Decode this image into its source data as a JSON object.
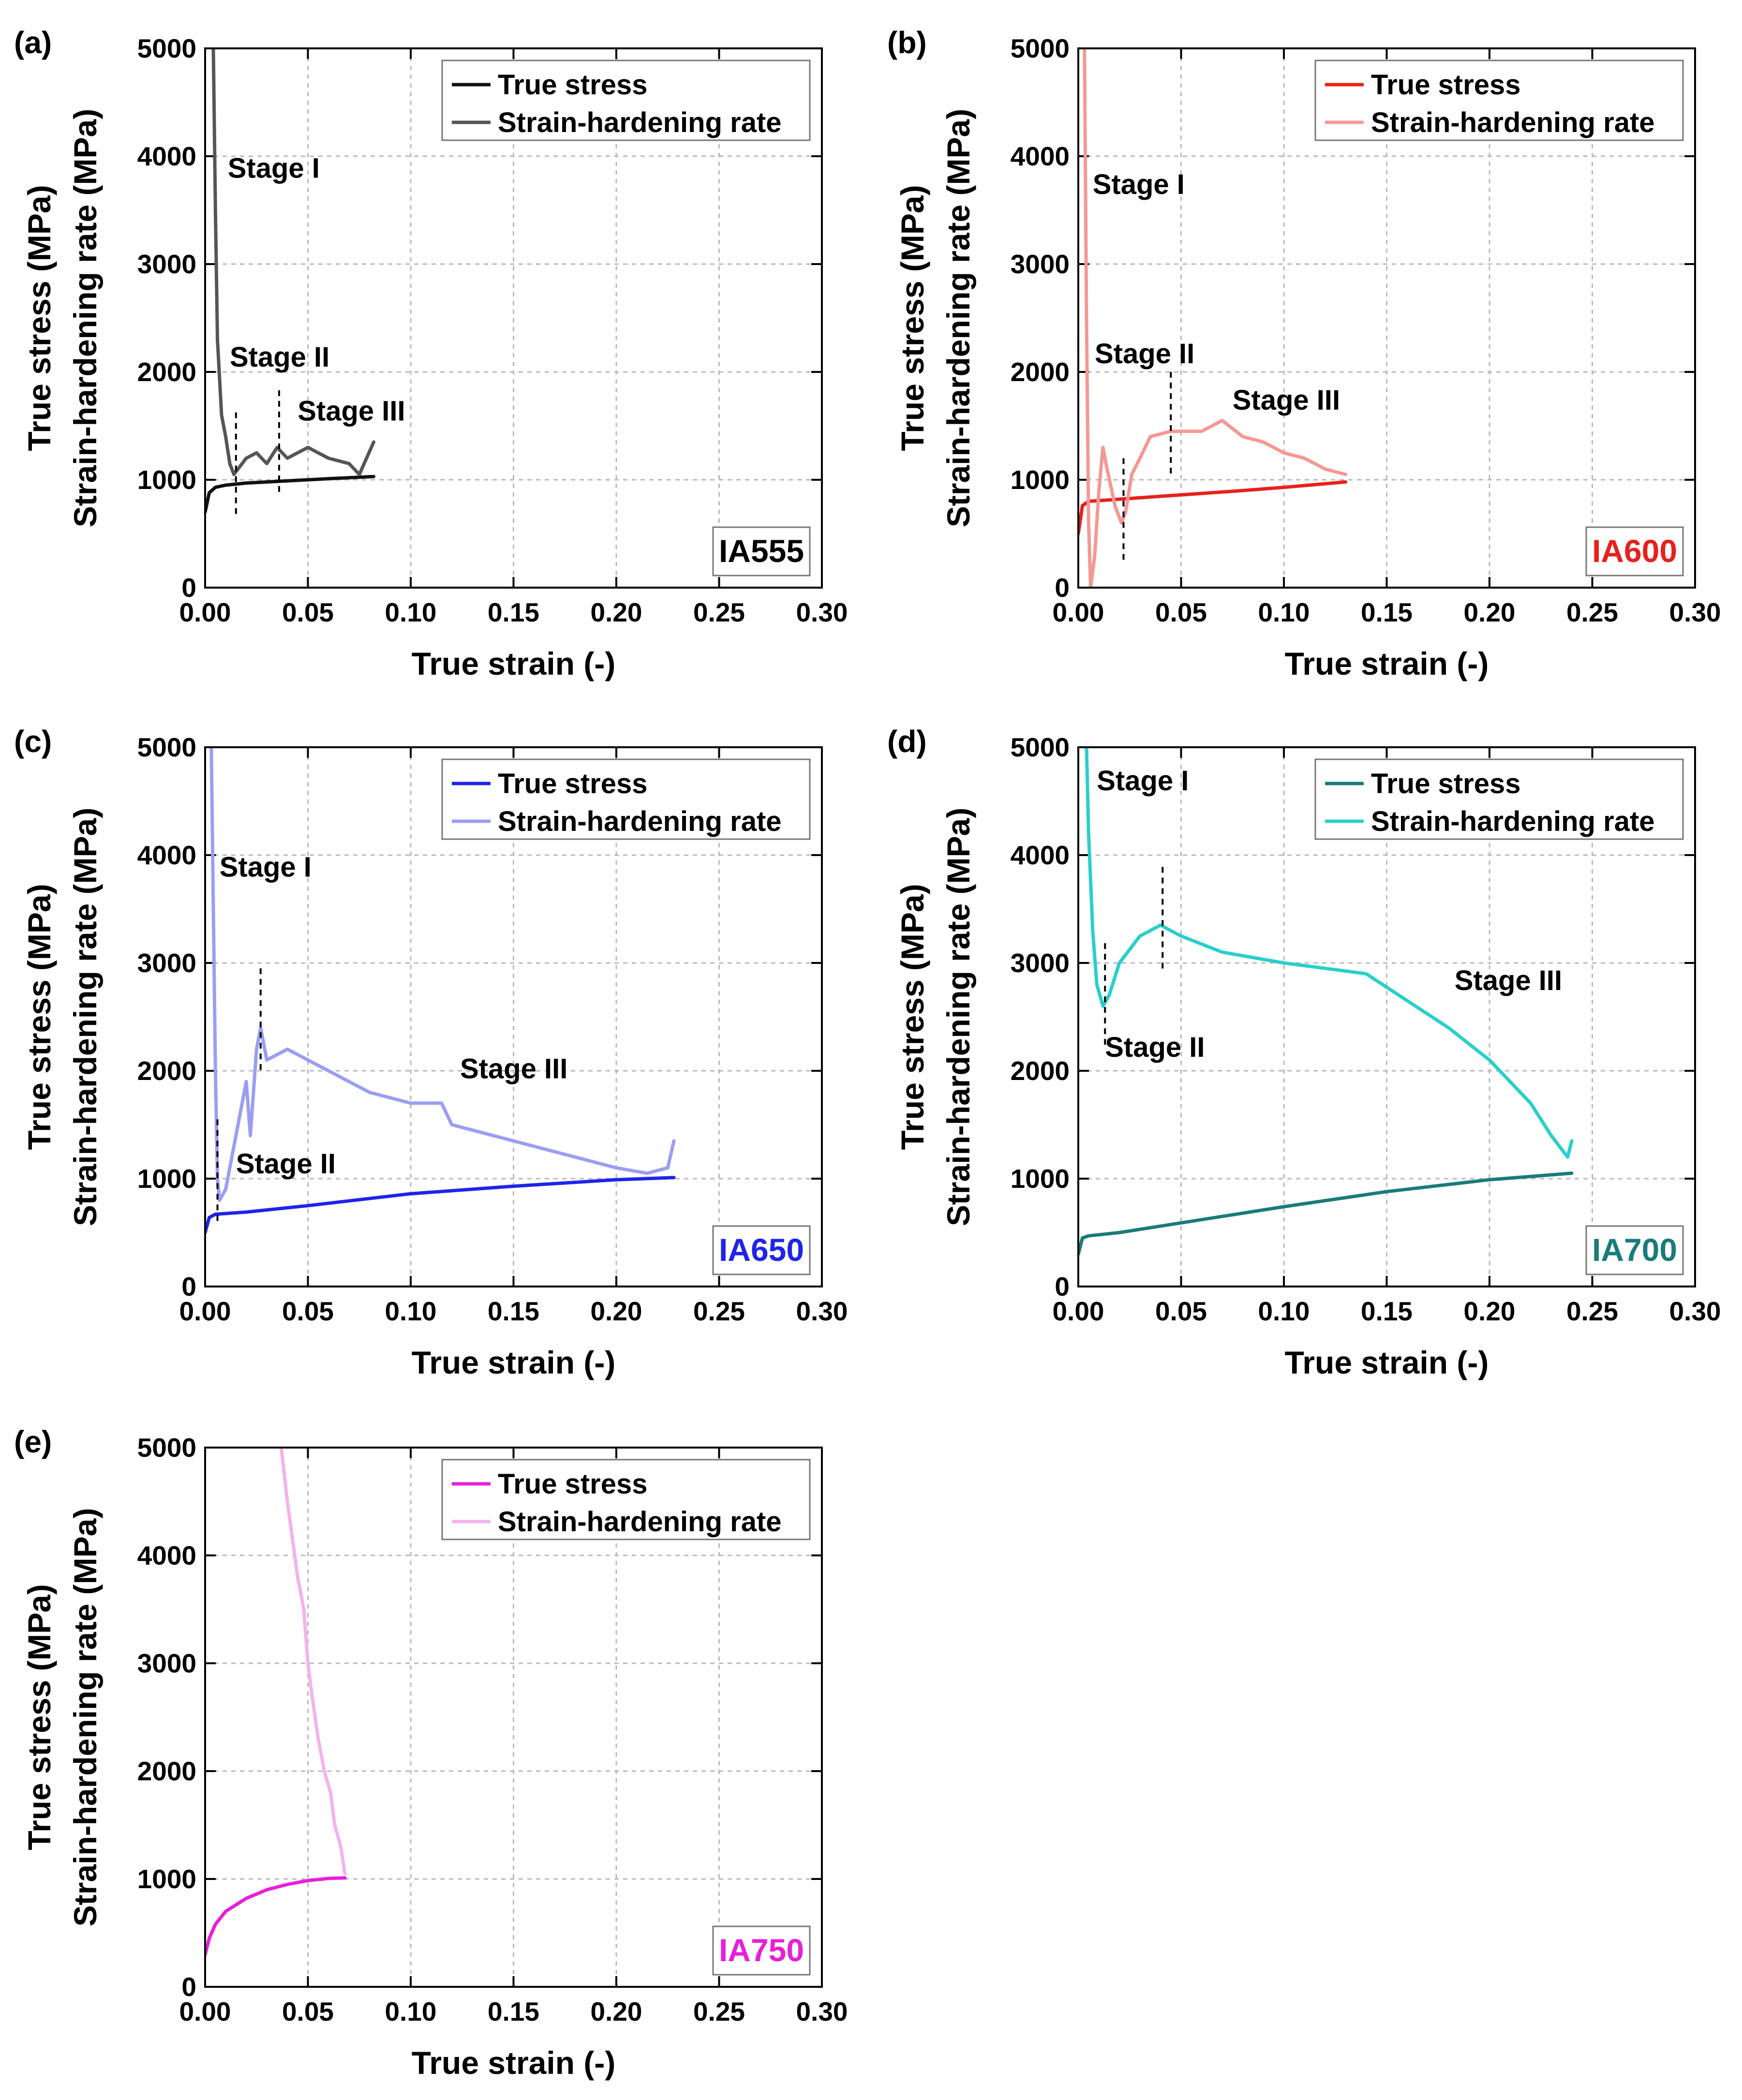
{
  "figure": {
    "common": {
      "xlabel": "True strain (-)",
      "ylabel_line1": "True stress (MPa)",
      "ylabel_line2": "Strain-hardening rate (MPa)",
      "xlim": [
        0,
        0.3
      ],
      "ylim": [
        0,
        5000
      ],
      "xticks": [
        "0.00",
        "0.05",
        "0.10",
        "0.15",
        "0.20",
        "0.25",
        "0.30"
      ],
      "yticks": [
        "0",
        "1000",
        "2000",
        "3000",
        "4000",
        "5000"
      ],
      "legend": [
        "True stress",
        "Strain-hardening rate"
      ]
    }
  },
  "chart_data": [
    {
      "type": "line",
      "panel": "(a)",
      "sample": "IA555",
      "title": "IA555",
      "xlabel": "True strain (-)",
      "ylabel": "True stress (MPa) / Strain-hardening rate (MPa)",
      "xlim": [
        0,
        0.3
      ],
      "ylim": [
        0,
        5000
      ],
      "grid": true,
      "legend_position": "top-right",
      "colors": {
        "stress": "#111111",
        "rate": "#555555",
        "label": "#000000"
      },
      "series": [
        {
          "name": "True stress",
          "x": [
            0,
            0.002,
            0.005,
            0.01,
            0.02,
            0.04,
            0.06,
            0.082
          ],
          "y": [
            700,
            880,
            930,
            950,
            970,
            990,
            1010,
            1030
          ]
        },
        {
          "name": "Strain-hardening rate",
          "x": [
            0.004,
            0.005,
            0.006,
            0.008,
            0.01,
            0.012,
            0.014,
            0.016,
            0.02,
            0.025,
            0.03,
            0.035,
            0.04,
            0.05,
            0.06,
            0.07,
            0.075,
            0.082
          ],
          "y": [
            5000,
            3500,
            2300,
            1600,
            1400,
            1150,
            1050,
            1100,
            1200,
            1250,
            1150,
            1300,
            1200,
            1300,
            1200,
            1150,
            1050,
            1350
          ]
        }
      ],
      "stage_markers": [
        0.015,
        0.036
      ],
      "annotations": [
        {
          "text": "Stage I",
          "x": 0.011,
          "y": 3800
        },
        {
          "text": "Stage II",
          "x": 0.012,
          "y": 2050
        },
        {
          "text": "Stage III",
          "x": 0.045,
          "y": 1550
        }
      ]
    },
    {
      "type": "line",
      "panel": "(b)",
      "sample": "IA600",
      "title": "IA600",
      "xlabel": "True strain (-)",
      "ylabel": "True stress (MPa) / Strain-hardening rate (MPa)",
      "xlim": [
        0,
        0.3
      ],
      "ylim": [
        0,
        5000
      ],
      "grid": true,
      "legend_position": "top-right",
      "colors": {
        "stress": "#e8201c",
        "rate": "#f49893",
        "label": "#e8201c"
      },
      "series": [
        {
          "name": "True stress",
          "x": [
            0,
            0.002,
            0.005,
            0.02,
            0.05,
            0.08,
            0.1,
            0.13
          ],
          "y": [
            500,
            760,
            800,
            820,
            860,
            900,
            930,
            980
          ]
        },
        {
          "name": "Strain-hardening rate",
          "x": [
            0.003,
            0.004,
            0.005,
            0.006,
            0.008,
            0.01,
            0.012,
            0.014,
            0.018,
            0.021,
            0.023,
            0.026,
            0.03,
            0.035,
            0.045,
            0.06,
            0.07,
            0.08,
            0.09,
            0.1,
            0.11,
            0.12,
            0.13
          ],
          "y": [
            5000,
            2500,
            600,
            0,
            300,
            900,
            1300,
            1100,
            750,
            600,
            700,
            1050,
            1200,
            1400,
            1450,
            1450,
            1550,
            1400,
            1350,
            1250,
            1200,
            1100,
            1050
          ]
        }
      ],
      "stage_markers": [
        0.022,
        0.045
      ],
      "annotations": [
        {
          "text": "Stage I",
          "x": 0.007,
          "y": 3650
        },
        {
          "text": "Stage II",
          "x": 0.008,
          "y": 2080
        },
        {
          "text": "Stage III",
          "x": 0.075,
          "y": 1650
        }
      ]
    },
    {
      "type": "line",
      "panel": "(c)",
      "sample": "IA650",
      "title": "IA650",
      "xlabel": "True strain (-)",
      "ylabel": "True stress (MPa) / Strain-hardening rate (MPa)",
      "xlim": [
        0,
        0.3
      ],
      "ylim": [
        0,
        5000
      ],
      "grid": true,
      "legend_position": "top-right",
      "colors": {
        "stress": "#1f24e8",
        "rate": "#9a9ef2",
        "label": "#1f24e8"
      },
      "series": [
        {
          "name": "True stress",
          "x": [
            0,
            0.002,
            0.005,
            0.02,
            0.05,
            0.1,
            0.15,
            0.2,
            0.228
          ],
          "y": [
            500,
            640,
            670,
            690,
            750,
            860,
            930,
            990,
            1010
          ]
        },
        {
          "name": "Strain-hardening rate",
          "x": [
            0.003,
            0.004,
            0.005,
            0.006,
            0.007,
            0.01,
            0.015,
            0.02,
            0.022,
            0.025,
            0.027,
            0.03,
            0.04,
            0.06,
            0.08,
            0.1,
            0.115,
            0.12,
            0.14,
            0.16,
            0.18,
            0.2,
            0.215,
            0.225,
            0.228
          ],
          "y": [
            5000,
            3500,
            2000,
            1000,
            800,
            900,
            1400,
            1900,
            1400,
            2200,
            2400,
            2100,
            2200,
            2000,
            1800,
            1700,
            1700,
            1500,
            1400,
            1300,
            1200,
            1100,
            1050,
            1100,
            1350
          ]
        }
      ],
      "stage_markers": [
        0.006,
        0.027
      ],
      "annotations": [
        {
          "text": "Stage I",
          "x": 0.007,
          "y": 3800
        },
        {
          "text": "Stage II",
          "x": 0.015,
          "y": 1050
        },
        {
          "text": "Stage III",
          "x": 0.124,
          "y": 1930
        }
      ]
    },
    {
      "type": "line",
      "panel": "(d)",
      "sample": "IA700",
      "title": "IA700",
      "xlabel": "True strain (-)",
      "ylabel": "True stress (MPa) / Strain-hardening rate (MPa)",
      "xlim": [
        0,
        0.3
      ],
      "ylim": [
        0,
        5000
      ],
      "grid": true,
      "legend_position": "top-right",
      "colors": {
        "stress": "#1a7b7a",
        "rate": "#29cfcc",
        "label": "#1a7b7a"
      },
      "series": [
        {
          "name": "True stress",
          "x": [
            0,
            0.002,
            0.005,
            0.02,
            0.05,
            0.1,
            0.15,
            0.2,
            0.24
          ],
          "y": [
            300,
            450,
            470,
            500,
            590,
            740,
            880,
            990,
            1050
          ]
        },
        {
          "name": "Strain-hardening rate",
          "x": [
            0.004,
            0.005,
            0.007,
            0.009,
            0.012,
            0.015,
            0.02,
            0.03,
            0.04,
            0.05,
            0.07,
            0.1,
            0.12,
            0.14,
            0.16,
            0.18,
            0.2,
            0.22,
            0.23,
            0.238,
            0.24
          ],
          "y": [
            5000,
            4200,
            3300,
            2800,
            2600,
            2700,
            3000,
            3250,
            3350,
            3250,
            3100,
            3000,
            2950,
            2900,
            2650,
            2400,
            2100,
            1700,
            1400,
            1200,
            1350
          ]
        }
      ],
      "stage_markers": [
        0.013,
        0.041
      ],
      "annotations": [
        {
          "text": "Stage I",
          "x": 0.009,
          "y": 4600
        },
        {
          "text": "Stage II",
          "x": 0.013,
          "y": 2130
        },
        {
          "text": "Stage III",
          "x": 0.183,
          "y": 2750
        }
      ]
    },
    {
      "type": "line",
      "panel": "(e)",
      "sample": "IA750",
      "title": "IA750",
      "xlabel": "True strain (-)",
      "ylabel": "True stress (MPa) / Strain-hardening rate (MPa)",
      "xlim": [
        0,
        0.3
      ],
      "ylim": [
        0,
        5000
      ],
      "grid": true,
      "legend_position": "top-right",
      "colors": {
        "stress": "#e81fd8",
        "rate": "#f2b3ec",
        "label": "#e81fd8"
      },
      "series": [
        {
          "name": "True stress",
          "x": [
            0,
            0.002,
            0.005,
            0.01,
            0.02,
            0.03,
            0.04,
            0.05,
            0.06,
            0.068
          ],
          "y": [
            300,
            450,
            580,
            700,
            820,
            900,
            950,
            985,
            1005,
            1010
          ]
        },
        {
          "name": "Strain-hardening rate",
          "x": [
            0.037,
            0.04,
            0.045,
            0.048,
            0.05,
            0.052,
            0.055,
            0.058,
            0.061,
            0.063,
            0.066,
            0.068
          ],
          "y": [
            5000,
            4500,
            3800,
            3500,
            3000,
            2700,
            2300,
            2000,
            1800,
            1500,
            1300,
            1050
          ]
        }
      ],
      "stage_markers": [],
      "annotations": []
    }
  ]
}
